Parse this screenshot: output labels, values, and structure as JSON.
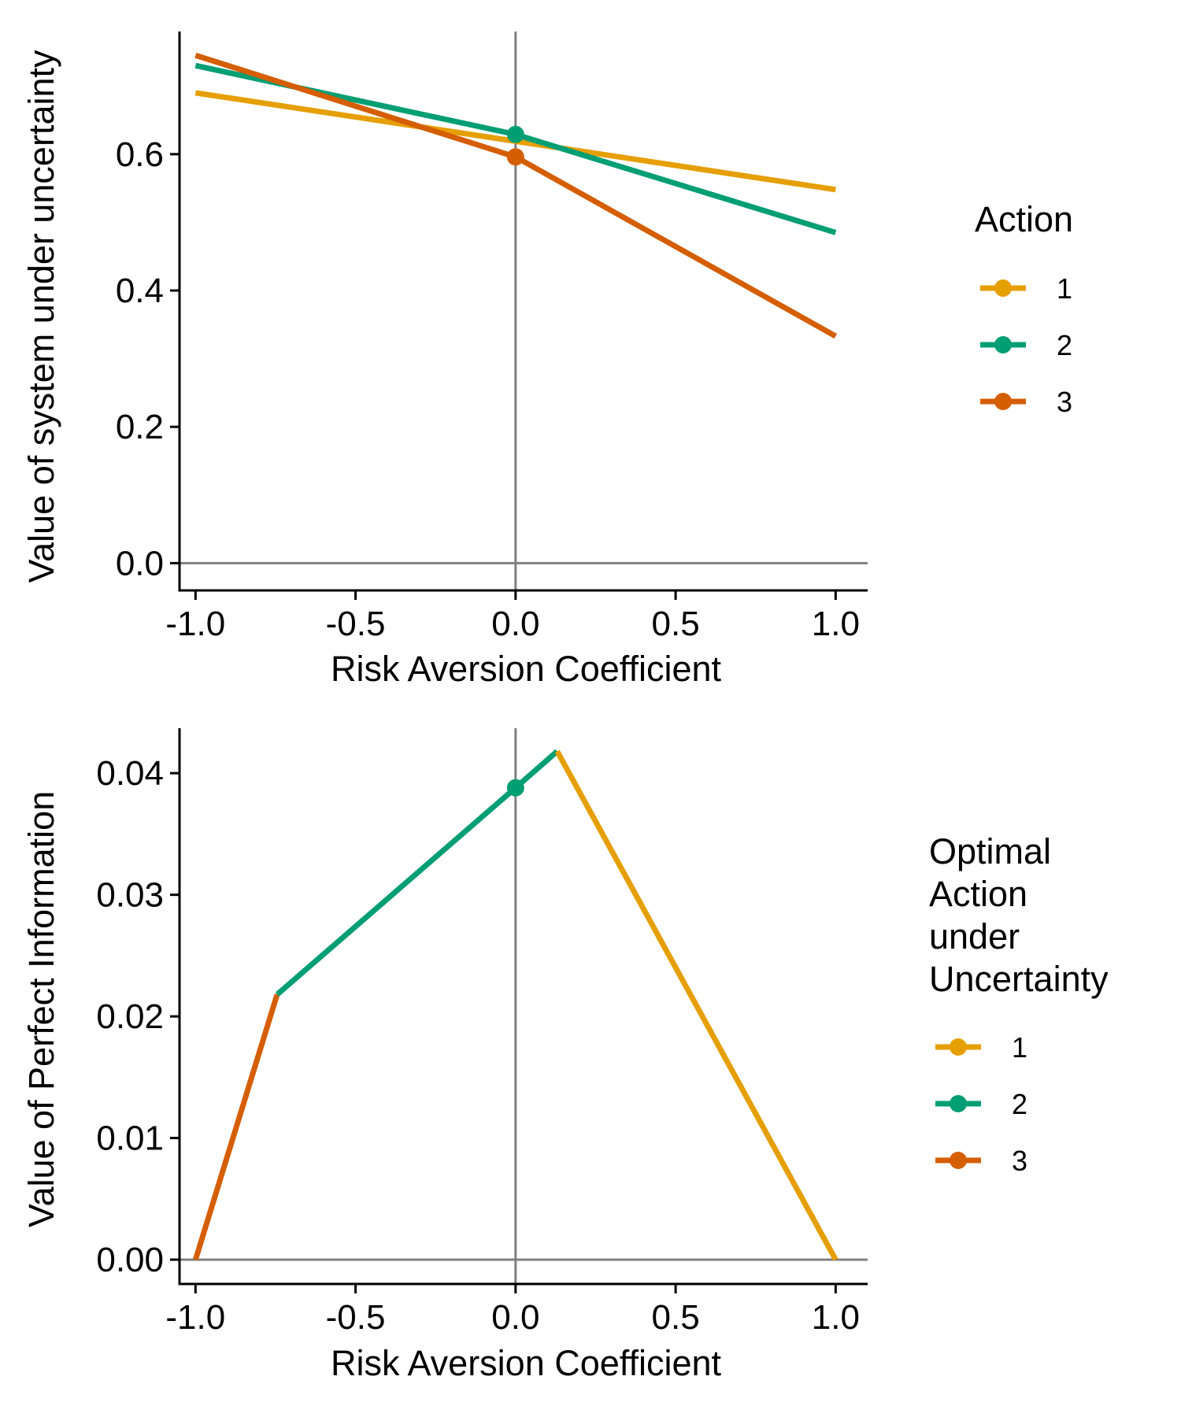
{
  "colors": {
    "action_1": "#E69F00",
    "action_2": "#009E73",
    "action_3": "#D55E00",
    "reference_line": "#808080",
    "axis": "#000000"
  },
  "chart_data": [
    {
      "type": "line",
      "xlabel": "Risk Aversion Coefficient",
      "ylabel": "Value of system under uncertainty",
      "xlim": [
        -1.05,
        1.1
      ],
      "ylim": [
        -0.04,
        0.78
      ],
      "x_ticks": [
        -1.0,
        -0.5,
        0.0,
        0.5,
        1.0
      ],
      "x_tick_labels": [
        "-1.0",
        "-0.5",
        "0.0",
        "0.5",
        "1.0"
      ],
      "y_ticks": [
        0.0,
        0.2,
        0.4,
        0.6
      ],
      "y_tick_labels": [
        "0.0",
        "0.2",
        "0.4",
        "0.6"
      ],
      "reference_lines": {
        "x": 0,
        "y": 0
      },
      "legend": {
        "title": "Action",
        "placement": "right",
        "entries": [
          "1",
          "2",
          "3"
        ]
      },
      "series": [
        {
          "name": "1",
          "color_key": "action_1",
          "x": [
            -1,
            1
          ],
          "y": [
            0.69,
            0.548
          ]
        },
        {
          "name": "2",
          "color_key": "action_2",
          "x": [
            -1,
            0,
            1
          ],
          "y": [
            0.73,
            0.629,
            0.485
          ],
          "points": [
            {
              "x": 0,
              "y": 0.629
            }
          ]
        },
        {
          "name": "3",
          "color_key": "action_3",
          "x": [
            -1,
            0,
            1
          ],
          "y": [
            0.745,
            0.596,
            0.333
          ],
          "points": [
            {
              "x": 0,
              "y": 0.596
            }
          ]
        }
      ]
    },
    {
      "type": "line",
      "xlabel": "Risk Aversion Coefficient",
      "ylabel": "Value of Perfect Information",
      "xlim": [
        -1.05,
        1.1
      ],
      "ylim": [
        -0.002,
        0.0437
      ],
      "x_ticks": [
        -1.0,
        -0.5,
        0.0,
        0.5,
        1.0
      ],
      "x_tick_labels": [
        "-1.0",
        "-0.5",
        "0.0",
        "0.5",
        "1.0"
      ],
      "y_ticks": [
        0.0,
        0.01,
        0.02,
        0.03,
        0.04
      ],
      "y_tick_labels": [
        "0.00",
        "0.01",
        "0.02",
        "0.03",
        "0.04"
      ],
      "reference_lines": {
        "x": 0,
        "y": 0
      },
      "legend": {
        "title": "Optimal Action under Uncertainty",
        "title_lines": [
          "Optimal",
          "Action",
          "under",
          "Uncertainty"
        ],
        "placement": "right",
        "entries": [
          "1",
          "2",
          "3"
        ]
      },
      "series": [
        {
          "name": "3",
          "color_key": "action_3",
          "x": [
            -1.0,
            -0.745
          ],
          "y": [
            0.0,
            0.0218
          ]
        },
        {
          "name": "2",
          "color_key": "action_2",
          "x": [
            -0.745,
            0.0,
            0.13
          ],
          "y": [
            0.0218,
            0.0388,
            0.0418
          ],
          "points": [
            {
              "x": 0,
              "y": 0.0388
            }
          ]
        },
        {
          "name": "1",
          "color_key": "action_1",
          "x": [
            0.13,
            1.0
          ],
          "y": [
            0.0418,
            0.0
          ]
        }
      ]
    }
  ]
}
